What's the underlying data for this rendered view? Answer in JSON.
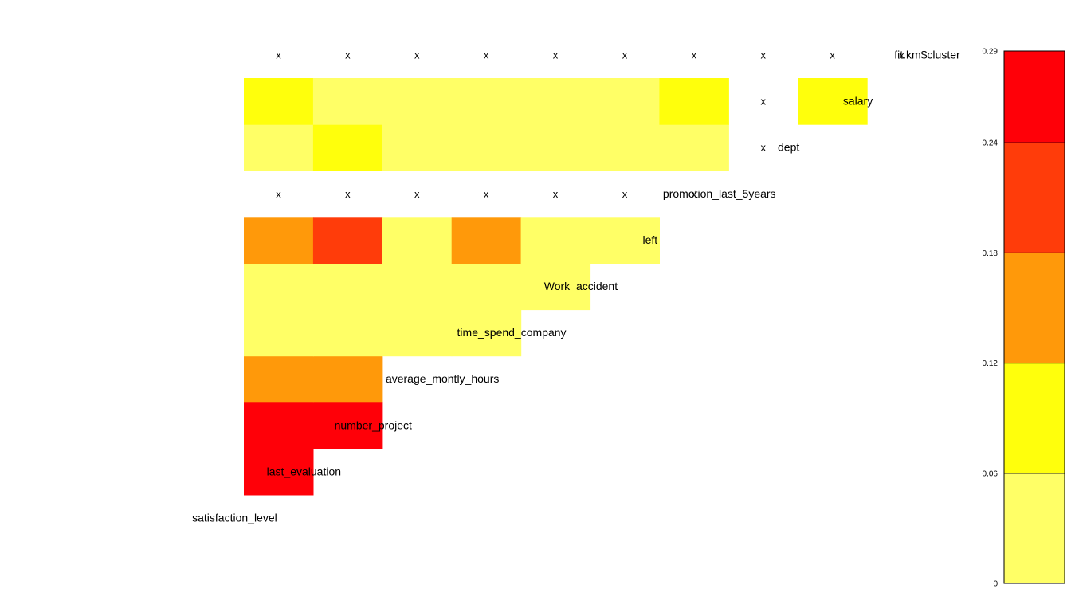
{
  "chart_data": {
    "type": "heatmap",
    "title": "",
    "xlabel": "",
    "ylabel": "",
    "variables": [
      "satisfaction_level",
      "last_evaluation",
      "number_project",
      "average_montly_hours",
      "time_spend_company",
      "Work_accident",
      "left",
      "promotion_last_5years",
      "dept",
      "salary",
      "fit.km$cluster"
    ],
    "na_marker": "x",
    "color_scale": {
      "breaks": [
        0,
        0.06,
        0.12,
        0.18,
        0.24,
        0.29
      ],
      "tick_labels": [
        "0",
        "0.06",
        "0.12",
        "0.18",
        "0.24",
        "0.29"
      ],
      "colors": [
        "#FFFF66",
        "#FFFF0C",
        "#FF990A",
        "#FF3C0A",
        "#FF0008"
      ]
    },
    "cells": [
      {
        "row": "last_evaluation",
        "col": "satisfaction_level",
        "value": 0.27
      },
      {
        "row": "number_project",
        "col": "satisfaction_level",
        "value": 0.26
      },
      {
        "row": "number_project",
        "col": "last_evaluation",
        "value": 0.27
      },
      {
        "row": "average_montly_hours",
        "col": "satisfaction_level",
        "value": 0.15
      },
      {
        "row": "average_montly_hours",
        "col": "last_evaluation",
        "value": 0.15
      },
      {
        "row": "time_spend_company",
        "col": "satisfaction_level",
        "value": 0.03
      },
      {
        "row": "time_spend_company",
        "col": "last_evaluation",
        "value": 0.03
      },
      {
        "row": "time_spend_company",
        "col": "number_project",
        "value": 0.03
      },
      {
        "row": "time_spend_company",
        "col": "average_montly_hours",
        "value": 0.03
      },
      {
        "row": "Work_accident",
        "col": "satisfaction_level",
        "value": 0.03
      },
      {
        "row": "Work_accident",
        "col": "last_evaluation",
        "value": 0.03
      },
      {
        "row": "Work_accident",
        "col": "number_project",
        "value": 0.03
      },
      {
        "row": "Work_accident",
        "col": "average_montly_hours",
        "value": 0.03
      },
      {
        "row": "Work_accident",
        "col": "time_spend_company",
        "value": 0.03
      },
      {
        "row": "left",
        "col": "satisfaction_level",
        "value": 0.15
      },
      {
        "row": "left",
        "col": "last_evaluation",
        "value": 0.21
      },
      {
        "row": "left",
        "col": "number_project",
        "value": 0.03
      },
      {
        "row": "left",
        "col": "average_montly_hours",
        "value": 0.15
      },
      {
        "row": "left",
        "col": "time_spend_company",
        "value": 0.03
      },
      {
        "row": "left",
        "col": "Work_accident",
        "value": 0.03
      },
      {
        "row": "promotion_last_5years",
        "col": "satisfaction_level",
        "value": null
      },
      {
        "row": "promotion_last_5years",
        "col": "last_evaluation",
        "value": null
      },
      {
        "row": "promotion_last_5years",
        "col": "number_project",
        "value": null
      },
      {
        "row": "promotion_last_5years",
        "col": "average_montly_hours",
        "value": null
      },
      {
        "row": "promotion_last_5years",
        "col": "time_spend_company",
        "value": null
      },
      {
        "row": "promotion_last_5years",
        "col": "Work_accident",
        "value": null
      },
      {
        "row": "promotion_last_5years",
        "col": "left",
        "value": null
      },
      {
        "row": "dept",
        "col": "satisfaction_level",
        "value": 0.03
      },
      {
        "row": "dept",
        "col": "last_evaluation",
        "value": 0.09
      },
      {
        "row": "dept",
        "col": "number_project",
        "value": 0.03
      },
      {
        "row": "dept",
        "col": "average_montly_hours",
        "value": 0.03
      },
      {
        "row": "dept",
        "col": "time_spend_company",
        "value": 0.03
      },
      {
        "row": "dept",
        "col": "Work_accident",
        "value": 0.03
      },
      {
        "row": "dept",
        "col": "left",
        "value": 0.03
      },
      {
        "row": "dept",
        "col": "promotion_last_5years",
        "value": null
      },
      {
        "row": "salary",
        "col": "satisfaction_level",
        "value": 0.09
      },
      {
        "row": "salary",
        "col": "last_evaluation",
        "value": 0.03
      },
      {
        "row": "salary",
        "col": "number_project",
        "value": 0.03
      },
      {
        "row": "salary",
        "col": "average_montly_hours",
        "value": 0.03
      },
      {
        "row": "salary",
        "col": "time_spend_company",
        "value": 0.03
      },
      {
        "row": "salary",
        "col": "Work_accident",
        "value": 0.03
      },
      {
        "row": "salary",
        "col": "left",
        "value": 0.09
      },
      {
        "row": "salary",
        "col": "promotion_last_5years",
        "value": null
      },
      {
        "row": "salary",
        "col": "dept",
        "value": 0.09
      },
      {
        "row": "fit.km$cluster",
        "col": "satisfaction_level",
        "value": null
      },
      {
        "row": "fit.km$cluster",
        "col": "last_evaluation",
        "value": null
      },
      {
        "row": "fit.km$cluster",
        "col": "number_project",
        "value": null
      },
      {
        "row": "fit.km$cluster",
        "col": "average_montly_hours",
        "value": null
      },
      {
        "row": "fit.km$cluster",
        "col": "time_spend_company",
        "value": null
      },
      {
        "row": "fit.km$cluster",
        "col": "Work_accident",
        "value": null
      },
      {
        "row": "fit.km$cluster",
        "col": "left",
        "value": null
      },
      {
        "row": "fit.km$cluster",
        "col": "promotion_last_5years",
        "value": null
      },
      {
        "row": "fit.km$cluster",
        "col": "dept",
        "value": null
      },
      {
        "row": "fit.km$cluster",
        "col": "salary",
        "value": null
      }
    ]
  }
}
